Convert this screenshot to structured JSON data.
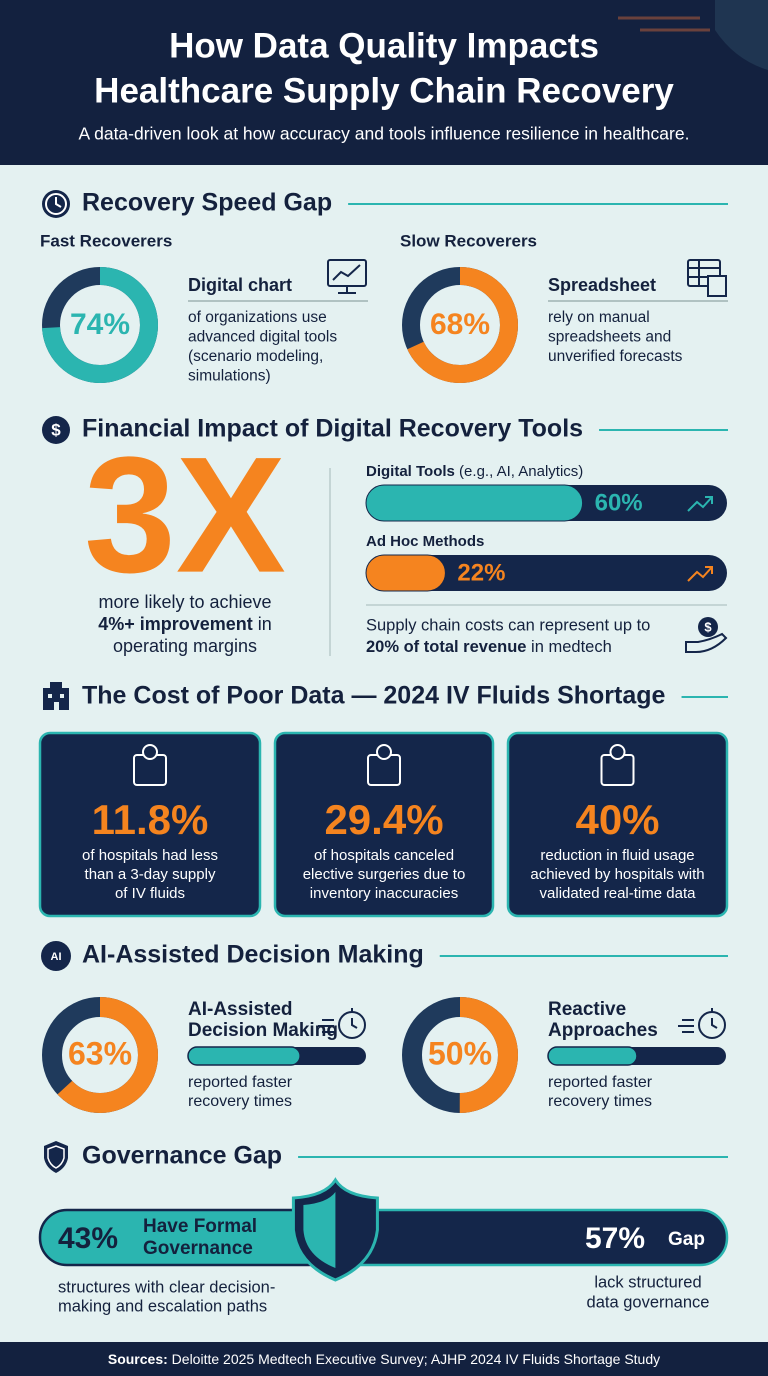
{
  "header": {
    "title": [
      "How Data Quality Impacts",
      "Healthcare Supply Chain Recovery"
    ],
    "subtitle": "A data-driven look at how accuracy and tools influence resilience in healthcare."
  },
  "recovery_speed": {
    "heading": "Recovery Speed Gap",
    "scale": [
      0,
      100
    ],
    "groups": [
      {
        "label": "Fast Recoverers",
        "value": 74,
        "value_label": "74%",
        "color": "#2bb5b0",
        "tool": "Digital chart",
        "description": [
          "of organizations use",
          "advanced digital tools",
          "(scenario modeling,",
          "simulations)"
        ]
      },
      {
        "label": "Slow Recoverers",
        "value": 68,
        "value_label": "68%",
        "color": "#f5841f",
        "tool": "Spreadsheet",
        "description": [
          "rely on manual",
          "spreadsheets and",
          "unverified forecasts"
        ]
      }
    ]
  },
  "financial": {
    "heading": "Financial Impact of Digital Recovery Tools",
    "multiplier": "3X",
    "multiplier_text": {
      "line1": "more likely to achieve",
      "line2_bold": "4%+ improvement",
      "line2_rest": " in",
      "line3": "operating margins"
    },
    "scale": [
      0,
      100
    ],
    "bars": [
      {
        "name_bold": "Digital Tools",
        "name_rest": " (e.g., AI, Analytics)",
        "value": 60,
        "value_label": "60%",
        "color": "#2bb5b0"
      },
      {
        "name_bold": "Ad Hoc Methods",
        "value": 22,
        "value_label": "22%",
        "color": "#f5841f"
      }
    ],
    "note": {
      "line1": "Supply chain costs can represent up to",
      "line2_bold": "20% of total revenue",
      "line2_rest": " in medtech"
    }
  },
  "cost": {
    "heading": "The Cost of Poor Data — 2024 IV Fluids Shortage",
    "cards": [
      {
        "value": "11.8%",
        "description": [
          "of hospitals had less",
          "than a 3-day supply",
          "of IV fluids"
        ]
      },
      {
        "value": "29.4%",
        "description": [
          "of hospitals canceled",
          "elective surgeries due to",
          "inventory inaccuracies"
        ]
      },
      {
        "value": "40%",
        "description": [
          "reduction in fluid usage",
          "achieved by hospitals with",
          "validated real-time data"
        ]
      }
    ]
  },
  "ai": {
    "heading": "AI-Assisted Decision Making",
    "scale": [
      0,
      100
    ],
    "groups": [
      {
        "title": [
          "AI-Assisted",
          "Decision Making"
        ],
        "value": 63,
        "value_label": "63%",
        "description": [
          "reported faster",
          "recovery times"
        ]
      },
      {
        "title": [
          "Reactive",
          "Approaches"
        ],
        "value": 50,
        "value_label": "50%",
        "description": [
          "reported faster",
          "recovery times"
        ]
      }
    ]
  },
  "governance": {
    "heading": "Governance Gap",
    "scale": [
      0,
      100
    ],
    "left": {
      "value": 43,
      "value_label": "43%",
      "title": [
        "Have Formal",
        "Governance"
      ],
      "description": [
        "structures with clear decision-",
        "making and escalation paths"
      ]
    },
    "right": {
      "value": 57,
      "value_label": "57%",
      "title": "Gap",
      "description": [
        "lack structured",
        "data governance"
      ]
    }
  },
  "footer": {
    "label": "Sources:",
    "text": " Deloitte 2025 Medtech Executive Survey; AJHP 2024 IV Fluids Shortage Study"
  }
}
